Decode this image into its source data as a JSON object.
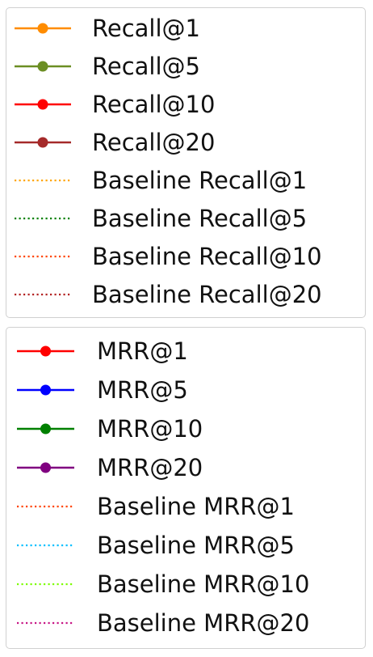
{
  "chart_data": {
    "type": "line",
    "legends": [
      {
        "entries": [
          {
            "label": "Recall@1",
            "color": "#ff8c00",
            "style": "solid-marker"
          },
          {
            "label": "Recall@5",
            "color": "#6b8e23",
            "style": "solid-marker"
          },
          {
            "label": "Recall@10",
            "color": "#ff0000",
            "style": "solid-marker"
          },
          {
            "label": "Recall@20",
            "color": "#a52a2a",
            "style": "solid-marker"
          },
          {
            "label": "Baseline Recall@1",
            "color": "#ffa500",
            "style": "dotted"
          },
          {
            "label": "Baseline Recall@5",
            "color": "#008000",
            "style": "dotted"
          },
          {
            "label": "Baseline Recall@10",
            "color": "#ff4500",
            "style": "dotted"
          },
          {
            "label": "Baseline Recall@20",
            "color": "#b22222",
            "style": "dotted"
          }
        ]
      },
      {
        "entries": [
          {
            "label": "MRR@1",
            "color": "#ff0000",
            "style": "solid-marker"
          },
          {
            "label": "MRR@5",
            "color": "#0000ff",
            "style": "solid-marker"
          },
          {
            "label": "MRR@10",
            "color": "#008000",
            "style": "solid-marker"
          },
          {
            "label": "MRR@20",
            "color": "#800080",
            "style": "solid-marker"
          },
          {
            "label": "Baseline MRR@1",
            "color": "#ff4500",
            "style": "dotted"
          },
          {
            "label": "Baseline MRR@5",
            "color": "#00bfff",
            "style": "dotted"
          },
          {
            "label": "Baseline MRR@10",
            "color": "#7cfc00",
            "style": "dotted"
          },
          {
            "label": "Baseline MRR@20",
            "color": "#c71585",
            "style": "dotted"
          }
        ]
      }
    ]
  }
}
